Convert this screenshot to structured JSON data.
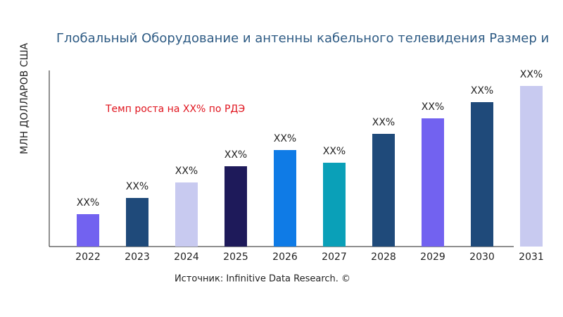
{
  "chart_data": {
    "type": "bar",
    "title": "Глобальный Оборудование и антенны кабельного телевидения Размер и",
    "y_label": "МЛН ДОЛЛАРОВ США",
    "annotation": "Темп роста на XX% по РДЭ",
    "source": "Источник: Infinitive Data Research. ©",
    "categories": [
      "2022",
      "2023",
      "2024",
      "2025",
      "2026",
      "2027",
      "2028",
      "2029",
      "2030",
      "2031"
    ],
    "values": [
      46,
      69,
      91,
      114,
      137,
      119,
      160,
      182,
      205,
      228
    ],
    "value_labels": [
      "XX%",
      "XX%",
      "XX%",
      "XX%",
      "XX%",
      "XX%",
      "XX%",
      "XX%",
      "XX%",
      "XX%"
    ],
    "colors": [
      "#7262f0",
      "#1f4a7a",
      "#c8caf0",
      "#1e1a5a",
      "#0f7be6",
      "#0aa0b8",
      "#1f4a7a",
      "#7262f0",
      "#1f4a7a",
      "#c8caf0"
    ],
    "ylim": [
      0,
      250
    ]
  }
}
